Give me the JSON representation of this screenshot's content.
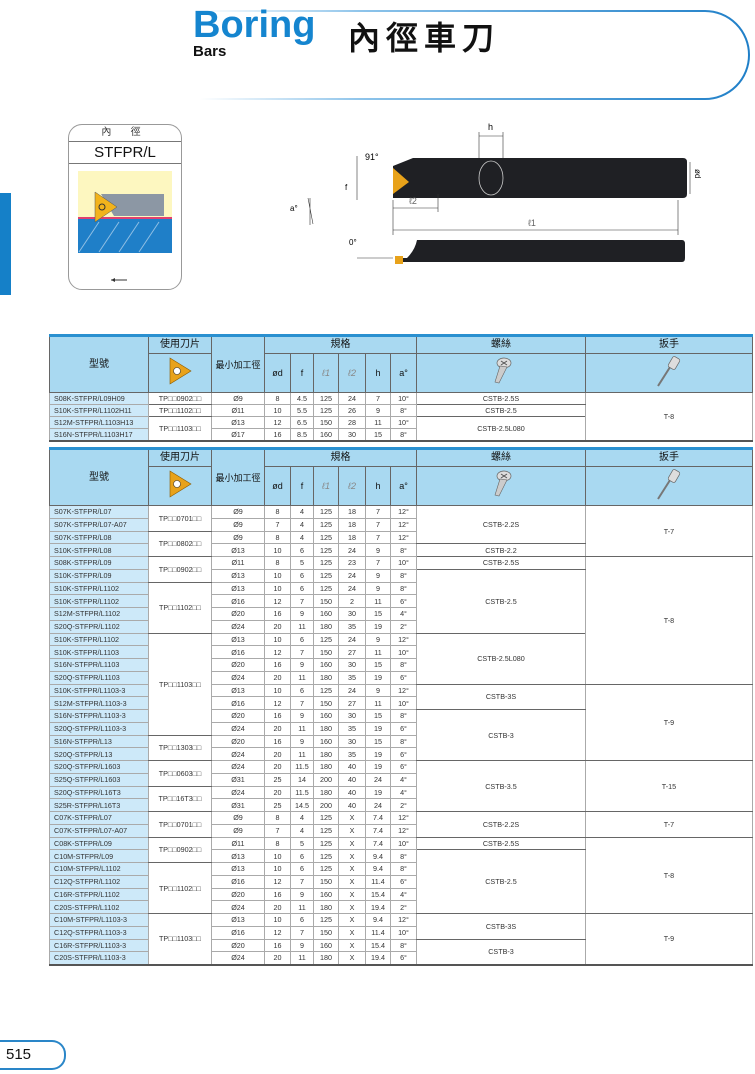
{
  "header": {
    "title_en": "Boring",
    "subtitle_en": "Bars",
    "title_zh": "內徑車刀"
  },
  "type_card": {
    "caption": "內 徑",
    "code": "STFPR/L"
  },
  "diagram": {
    "angle_lead": "91°",
    "angle_a": "a°",
    "angle_zero": "0°",
    "dim_h": "h",
    "dim_f": "f",
    "dim_l1": "ℓ1",
    "dim_l2": "ℓ2",
    "dim_d": "ød"
  },
  "columns": {
    "model": "型號",
    "insert": "使用刀片",
    "min_bore": "最小加工徑",
    "spec": "規格",
    "d": "ød",
    "f": "f",
    "l1": "ℓ1",
    "l2": "ℓ2",
    "h": "h",
    "a": "a°",
    "screw": "螺絲",
    "wrench": "扳手"
  },
  "icons": {
    "insert": "triangle-insert-icon",
    "screw": "screw-icon",
    "wrench": "torx-wrench-icon"
  },
  "colors": {
    "brand_blue": "#1585cf",
    "header_bg": "#a9d9f1",
    "model_bg": "#cde9f9",
    "insert_gold": "#e8a21a"
  },
  "table1": {
    "rows": [
      [
        "S08K-STFPR/L09H09",
        "Ø9",
        "8",
        "4.5",
        "125",
        "24",
        "7",
        "10°"
      ],
      [
        "S10K-STFPR/L1102H11",
        "Ø11",
        "10",
        "5.5",
        "125",
        "26",
        "9",
        "8°"
      ],
      [
        "S12M-STFPR/L1103H13",
        "Ø13",
        "12",
        "6.5",
        "150",
        "28",
        "11",
        "10°"
      ],
      [
        "S16N-STFPR/L1103H17",
        "Ø17",
        "16",
        "8.5",
        "160",
        "30",
        "15",
        "8°"
      ]
    ],
    "inserts": [
      {
        "label": "TP□□0902□□",
        "span": 1
      },
      {
        "label": "TP□□1102□□",
        "span": 1
      },
      {
        "label": "TP□□1103□□",
        "span": 2
      }
    ],
    "screws": [
      {
        "label": "CSTB-2.5S",
        "span": 1
      },
      {
        "label": "CSTB-2.5",
        "span": 1
      },
      {
        "label": "CSTB-2.5L080",
        "span": 2
      }
    ],
    "wrenches": [
      {
        "label": "T-8",
        "span": 4
      }
    ]
  },
  "table2": {
    "rows": [
      [
        "S07K-STFPR/L07",
        "Ø9",
        "8",
        "4",
        "125",
        "18",
        "7",
        "12°"
      ],
      [
        "S07K-STFPR/L07-A07",
        "Ø9",
        "7",
        "4",
        "125",
        "18",
        "7",
        "12°"
      ],
      [
        "S07K-STFPR/L08",
        "Ø9",
        "8",
        "4",
        "125",
        "18",
        "7",
        "12°"
      ],
      [
        "S10K-STFPR/L08",
        "Ø13",
        "10",
        "6",
        "125",
        "24",
        "9",
        "8°"
      ],
      [
        "S08K-STFPR/L09",
        "Ø11",
        "8",
        "5",
        "125",
        "23",
        "7",
        "10°"
      ],
      [
        "S10K-STFPR/L09",
        "Ø13",
        "10",
        "6",
        "125",
        "24",
        "9",
        "8°"
      ],
      [
        "S10K-STFPR/L1102",
        "Ø13",
        "10",
        "6",
        "125",
        "24",
        "9",
        "8°"
      ],
      [
        "S10K-STFPR/L1102",
        "Ø16",
        "12",
        "7",
        "150",
        "2",
        "11",
        "6°"
      ],
      [
        "S12M-STFPR/L1102",
        "Ø20",
        "16",
        "9",
        "160",
        "30",
        "15",
        "4°"
      ],
      [
        "S20Q-STFPR/L1102",
        "Ø24",
        "20",
        "11",
        "180",
        "35",
        "19",
        "2°"
      ],
      [
        "S10K-STFPR/L1102",
        "Ø13",
        "10",
        "6",
        "125",
        "24",
        "9",
        "12°"
      ],
      [
        "S10K-STFPR/L1103",
        "Ø16",
        "12",
        "7",
        "150",
        "27",
        "11",
        "10°"
      ],
      [
        "S16N-STFPR/L1103",
        "Ø20",
        "16",
        "9",
        "160",
        "30",
        "15",
        "8°"
      ],
      [
        "S20Q-STFPR/L1103",
        "Ø24",
        "20",
        "11",
        "180",
        "35",
        "19",
        "6°"
      ],
      [
        "S10K-STFPR/L1103-3",
        "Ø13",
        "10",
        "6",
        "125",
        "24",
        "9",
        "12°"
      ],
      [
        "S12M-STFPR/L1103-3",
        "Ø16",
        "12",
        "7",
        "150",
        "27",
        "11",
        "10°"
      ],
      [
        "S16N-STFPR/L1103-3",
        "Ø20",
        "16",
        "9",
        "160",
        "30",
        "15",
        "8°"
      ],
      [
        "S20Q-STFPR/L1103-3",
        "Ø24",
        "20",
        "11",
        "180",
        "35",
        "19",
        "6°"
      ],
      [
        "S16N-STFPR/L13",
        "Ø20",
        "16",
        "9",
        "160",
        "30",
        "15",
        "8°"
      ],
      [
        "S20Q-STFPR/L13",
        "Ø24",
        "20",
        "11",
        "180",
        "35",
        "19",
        "6°"
      ],
      [
        "S20Q-STFPR/L1603",
        "Ø24",
        "20",
        "11.5",
        "180",
        "40",
        "19",
        "6°"
      ],
      [
        "S25Q-STFPR/L1603",
        "Ø31",
        "25",
        "14",
        "200",
        "40",
        "24",
        "4°"
      ],
      [
        "S20Q-STFPR/L16T3",
        "Ø24",
        "20",
        "11.5",
        "180",
        "40",
        "19",
        "4°"
      ],
      [
        "S25R-STFPR/L16T3",
        "Ø31",
        "25",
        "14.5",
        "200",
        "40",
        "24",
        "2°"
      ],
      [
        "C07K-STFPR/L07",
        "Ø9",
        "8",
        "4",
        "125",
        "X",
        "7.4",
        "12°"
      ],
      [
        "C07K-STFPR/L07-A07",
        "Ø9",
        "7",
        "4",
        "125",
        "X",
        "7.4",
        "12°"
      ],
      [
        "C08K-STFPR/L09",
        "Ø11",
        "8",
        "5",
        "125",
        "X",
        "7.4",
        "10°"
      ],
      [
        "C10M-STFPR/L09",
        "Ø13",
        "10",
        "6",
        "125",
        "X",
        "9.4",
        "8°"
      ],
      [
        "C10M-STFPR/L1102",
        "Ø13",
        "10",
        "6",
        "125",
        "X",
        "9.4",
        "8°"
      ],
      [
        "C12Q-STFPR/L1102",
        "Ø16",
        "12",
        "7",
        "150",
        "X",
        "11.4",
        "6°"
      ],
      [
        "C16R-STFPR/L1102",
        "Ø20",
        "16",
        "9",
        "160",
        "X",
        "15.4",
        "4°"
      ],
      [
        "C20S-STFPR/L1102",
        "Ø24",
        "20",
        "11",
        "180",
        "X",
        "19.4",
        "2°"
      ],
      [
        "C10M-STFPR/L1103-3",
        "Ø13",
        "10",
        "6",
        "125",
        "X",
        "9.4",
        "12°"
      ],
      [
        "C12Q-STFPR/L1103-3",
        "Ø16",
        "12",
        "7",
        "150",
        "X",
        "11.4",
        "10°"
      ],
      [
        "C16R-STFPR/L1103-3",
        "Ø20",
        "16",
        "9",
        "160",
        "X",
        "15.4",
        "8°"
      ],
      [
        "C20S-STFPR/L1103-3",
        "Ø24",
        "20",
        "11",
        "180",
        "X",
        "19.4",
        "6°"
      ]
    ],
    "inserts": [
      {
        "label": "TP□□0701□□",
        "span": 2
      },
      {
        "label": "TP□□0802□□",
        "span": 2
      },
      {
        "label": "TP□□0902□□",
        "span": 2
      },
      {
        "label": "TP□□1102□□",
        "span": 4
      },
      {
        "label": "TP□□1103□□",
        "span": 8
      },
      {
        "label": "TP□□1303□□",
        "span": 2
      },
      {
        "label": "TP□□0603□□",
        "span": 2
      },
      {
        "label": "TP□□16T3□□",
        "span": 2
      },
      {
        "label": "TP□□0701□□",
        "span": 2
      },
      {
        "label": "TP□□0902□□",
        "span": 2
      },
      {
        "label": "TP□□1102□□",
        "span": 4
      },
      {
        "label": "TP□□1103□□",
        "span": 4
      }
    ],
    "screws": [
      {
        "label": "CSTB-2.2S",
        "span": 3
      },
      {
        "label": "CSTB-2.2",
        "span": 1
      },
      {
        "label": "CSTB-2.5S",
        "span": 1
      },
      {
        "label": "CSTB-2.5",
        "span": 5
      },
      {
        "label": "CSTB-2.5L080",
        "span": 4
      },
      {
        "label": "CSTB-3S",
        "span": 2
      },
      {
        "label": "CSTB-3",
        "span": 4
      },
      {
        "label": "CSTB-3.5",
        "span": 4
      },
      {
        "label": "CSTB-2.2S",
        "span": 2
      },
      {
        "label": "CSTB-2.5S",
        "span": 1
      },
      {
        "label": "CSTB-2.5",
        "span": 5
      },
      {
        "label": "CSTB-3S",
        "span": 2
      },
      {
        "label": "CSTB-3",
        "span": 2
      }
    ],
    "wrenches": [
      {
        "label": "T-7",
        "span": 4
      },
      {
        "label": "T-8",
        "span": 10
      },
      {
        "label": "T-9",
        "span": 6
      },
      {
        "label": "T-15",
        "span": 4
      },
      {
        "label": "T-7",
        "span": 2
      },
      {
        "label": "T-8",
        "span": 6
      },
      {
        "label": "T-9",
        "span": 4
      }
    ]
  },
  "footer": {
    "page_number": "515"
  }
}
